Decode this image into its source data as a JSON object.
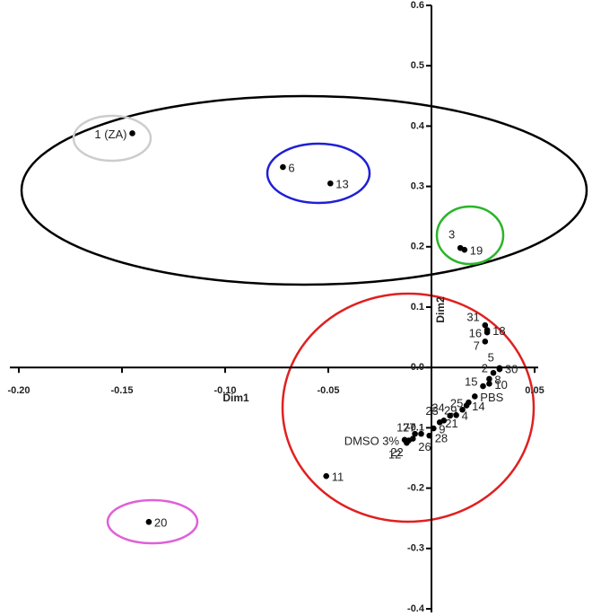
{
  "chart_data": {
    "type": "scatter",
    "x_label": "Dim1",
    "y_label": "Dim2",
    "xlim": [
      -0.2,
      0.05
    ],
    "ylim": [
      -0.4,
      0.6
    ],
    "xticks": [
      {
        "value": -0.2,
        "label": "-0.20"
      },
      {
        "value": -0.15,
        "label": "-0.15"
      },
      {
        "value": -0.1,
        "label": "-0.10"
      },
      {
        "value": -0.05,
        "label": "-0.05"
      },
      0.05
    ],
    "yticks": [
      0.6,
      0.5,
      0.4,
      0.3,
      0.2,
      0.1,
      {
        "value": 0,
        "label": "0.0"
      },
      -0.1,
      -0.2,
      -0.3,
      -0.4
    ],
    "series": [
      {
        "color": "#000000",
        "labels": [
          "1 (ZA)",
          "6",
          "13",
          "3",
          "19",
          "20",
          "11",
          "31",
          "16",
          "18",
          "7",
          "5",
          "2",
          "30",
          "8",
          "15",
          "10",
          "PBS",
          "25",
          "29",
          "14",
          "4",
          "24",
          "23",
          "21",
          "9",
          "28",
          "27",
          "17",
          "26",
          "22",
          "12",
          "DMSO 3%"
        ],
        "x": [
          -0.145,
          -0.072,
          -0.049,
          0.014,
          0.016,
          -0.137,
          -0.051,
          0.026,
          0.027,
          0.027,
          0.026,
          0.033,
          0.03,
          0.033,
          0.028,
          0.025,
          0.028,
          0.021,
          0.018,
          0.015,
          0.017,
          0.012,
          0.009,
          0.006,
          0.004,
          0.001,
          -0.001,
          -0.005,
          -0.008,
          -0.009,
          -0.011,
          -0.012,
          -0.013
        ],
        "values": [
          0.388,
          0.332,
          0.305,
          0.198,
          0.195,
          -0.256,
          -0.18,
          0.07,
          0.058,
          0.062,
          0.043,
          -0.003,
          -0.009,
          -0.001,
          -0.019,
          -0.031,
          -0.027,
          -0.048,
          -0.058,
          -0.07,
          -0.063,
          -0.079,
          -0.08,
          -0.088,
          -0.091,
          -0.101,
          -0.113,
          -0.11,
          -0.11,
          -0.118,
          -0.121,
          -0.125,
          -0.12
        ]
      }
    ]
  }
}
